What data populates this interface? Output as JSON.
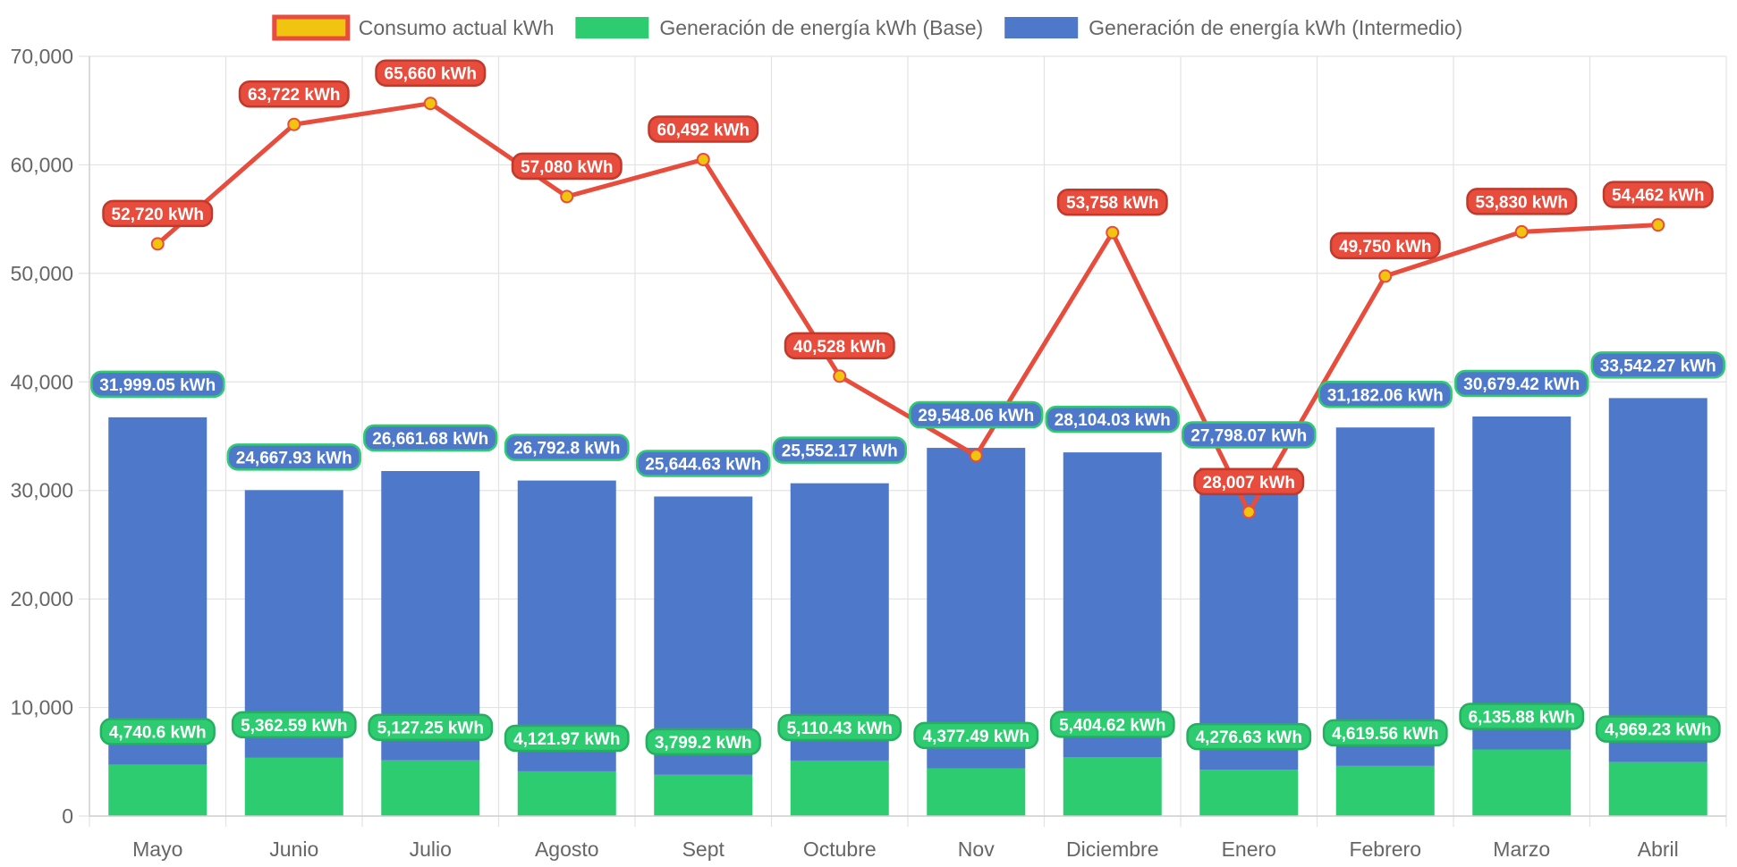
{
  "chart_data": {
    "type": "bar",
    "title": "",
    "xlabel": "",
    "ylabel": "",
    "categories": [
      "Mayo",
      "Junio",
      "Julio",
      "Agosto",
      "Sept",
      "Octubre",
      "Nov",
      "Diciembre",
      "Enero",
      "Febrero",
      "Marzo",
      "Abril"
    ],
    "ylim": [
      0,
      70000
    ],
    "y_ticks": [
      "0",
      "10,000",
      "20,000",
      "30,000",
      "40,000",
      "50,000",
      "60,000",
      "70,000"
    ],
    "y_tick_values": [
      0,
      10000,
      20000,
      30000,
      40000,
      50000,
      60000,
      70000
    ],
    "stacked_bars": true,
    "grid": true,
    "legend_position": "top",
    "series": [
      {
        "name": "Consumo actual kWh",
        "type": "line",
        "color": "#e74c3c",
        "point_color": "#f1c40f",
        "legend_fill": "#f1c40f",
        "legend_stroke": "#e74c3c",
        "values": [
          52720,
          63722,
          65660,
          57080,
          60492,
          40528,
          33212,
          53758,
          28007,
          49750,
          53830,
          54462
        ],
        "labels": [
          "52,720 kWh",
          "63,722 kWh",
          "65,660 kWh",
          "57,080 kWh",
          "60,492 kWh",
          "40,528 kWh",
          "",
          "53,758 kWh",
          "28,007 kWh",
          "49,750 kWh",
          "53,830 kWh",
          "54,462 kWh"
        ]
      },
      {
        "name": "Generación de energía kWh (Base)",
        "type": "bar",
        "color": "#2ecc71",
        "values": [
          4740.6,
          5362.59,
          5127.25,
          4121.97,
          3799.2,
          5110.43,
          4377.49,
          5404.62,
          4276.63,
          4619.56,
          6135.88,
          4969.23
        ],
        "labels": [
          "4,740.6 kWh",
          "5,362.59 kWh",
          "5,127.25 kWh",
          "4,121.97 kWh",
          "3,799.2 kWh",
          "5,110.43 kWh",
          "4,377.49 kWh",
          "5,404.62 kWh",
          "4,276.63 kWh",
          "4,619.56 kWh",
          "6,135.88 kWh",
          "4,969.23 kWh"
        ]
      },
      {
        "name": "Generación de energía kWh (Intermedio)",
        "type": "bar",
        "color": "#4e79cb",
        "label_border": "#2ecc71",
        "values": [
          31999.05,
          24667.93,
          26661.68,
          26792.8,
          25644.63,
          25552.17,
          29548.06,
          28104.03,
          27798.07,
          31182.06,
          30679.42,
          33542.27
        ],
        "labels": [
          "31,999.05 kWh",
          "24,667.93 kWh",
          "26,661.68 kWh",
          "26,792.8 kWh",
          "25,644.63 kWh",
          "25,552.17 kWh",
          "29,548.06 kWh",
          "28,104.03 kWh",
          "27,798.07 kWh",
          "31,182.06 kWh",
          "30,679.42 kWh",
          "33,542.27 kWh"
        ]
      }
    ]
  }
}
